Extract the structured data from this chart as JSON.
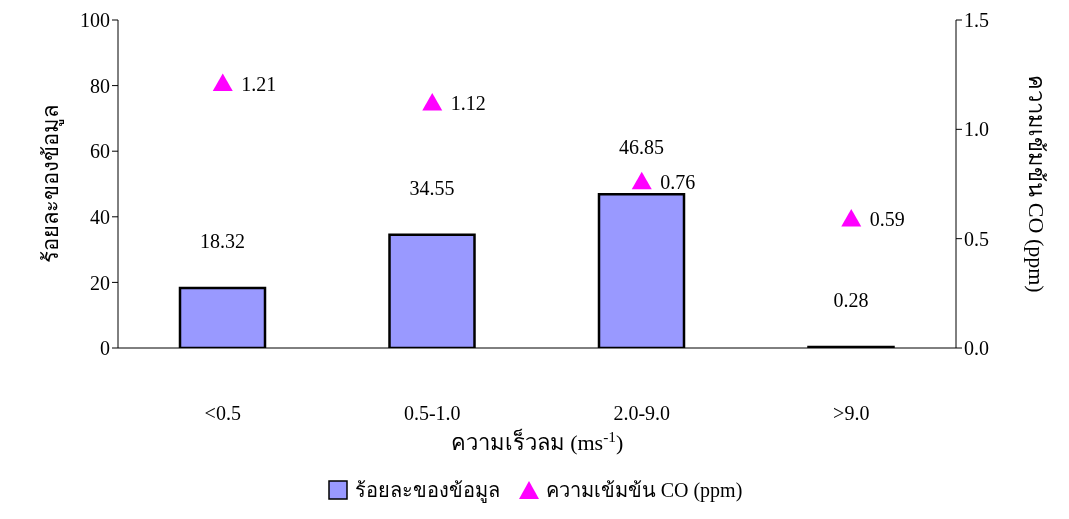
{
  "chart_data": {
    "type": "bar",
    "categories": [
      "<0.5",
      "0.5-1.0",
      "2.0-9.0",
      ">9.0"
    ],
    "series": [
      {
        "name": "ร้อยละของข้อมูล",
        "color": "#9999ff",
        "values": [
          18.32,
          34.55,
          46.85,
          0.28
        ]
      },
      {
        "name": "ความเข้มข้น CO (ppm)",
        "type": "scatter",
        "axis": "y2",
        "color": "#ff00ff",
        "values": [
          1.21,
          1.12,
          0.76,
          0.59
        ]
      }
    ],
    "xlabel": "ความเร็วลม (ms$^{-1}$)",
    "ylabel": "ร้อยละของข้อมูล",
    "y2label": "ความเข้มข้น CO (ppm)",
    "ylim": [
      0,
      100
    ],
    "yticks": [
      0,
      20,
      40,
      60,
      80,
      100
    ],
    "y2lim": [
      0,
      1.5
    ],
    "y2ticks": [
      {
        "value": 0,
        "label": "0.0"
      },
      {
        "value": 0.5,
        "label": "0.5"
      },
      {
        "value": 1,
        "label": "1.0"
      },
      {
        "value": 1.5,
        "label": "1.5"
      }
    ],
    "data_labels": true,
    "grid": false,
    "legend": "bottom",
    "marker": "triangle"
  }
}
